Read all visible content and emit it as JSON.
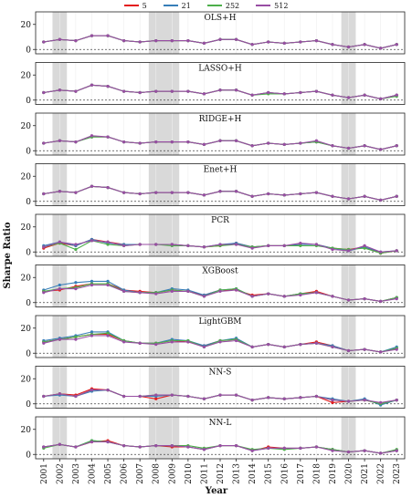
{
  "chart_data": {
    "type": "line",
    "ylabel": "Sharpe Ratio",
    "xlabel": "Year",
    "legend_position": "top-center",
    "shaded_years": [
      "2002",
      "2008-2009",
      "2020"
    ],
    "x": [
      "2001",
      "2002",
      "2003",
      "2004",
      "2005",
      "2006",
      "2007",
      "2008",
      "2009",
      "2010",
      "2011",
      "2012",
      "2013",
      "2014",
      "2015",
      "2016",
      "2017",
      "2018",
      "2019",
      "2020",
      "2021",
      "2022",
      "2023"
    ],
    "series_styles": [
      {
        "name": "5",
        "color": "#e41a1c"
      },
      {
        "name": "21",
        "color": "#377eb8"
      },
      {
        "name": "252",
        "color": "#4daf4a"
      },
      {
        "name": "512",
        "color": "#984ea3"
      }
    ],
    "panels": [
      {
        "title": "OLS+H",
        "ylim": [
          -2,
          22
        ],
        "yticks": [
          0,
          20
        ],
        "series": [
          {
            "name": "5",
            "values": [
              6,
              8,
              7,
              11,
              11,
              7,
              6,
              7,
              7,
              7,
              5,
              8,
              8,
              4,
              6,
              5,
              6,
              7,
              4,
              2,
              4,
              1,
              4
            ]
          },
          {
            "name": "21",
            "values": [
              6,
              8,
              7,
              11,
              11,
              7,
              6,
              7,
              7,
              7,
              5,
              8,
              8,
              4,
              6,
              5,
              6,
              7,
              4,
              2,
              4,
              1,
              4
            ]
          },
          {
            "name": "252",
            "values": [
              6,
              8,
              7,
              11,
              11,
              7,
              6,
              7,
              7,
              7,
              5,
              8,
              8,
              4,
              6,
              5,
              6,
              7,
              4,
              2,
              4,
              1,
              4
            ]
          },
          {
            "name": "512",
            "values": [
              6,
              8,
              7,
              11,
              11,
              7,
              6,
              7,
              7,
              7,
              5,
              8,
              8,
              4,
              6,
              5,
              6,
              7,
              4,
              2,
              4,
              1,
              4
            ]
          }
        ]
      },
      {
        "title": "LASSO+H",
        "ylim": [
          -2,
          22
        ],
        "yticks": [
          0,
          20
        ],
        "series": [
          {
            "name": "5",
            "values": [
              6,
              8,
              7,
              12,
              11,
              7,
              6,
              7,
              7,
              7,
              5,
              8,
              8,
              4,
              6,
              5,
              6,
              7,
              4,
              2,
              4,
              1,
              4
            ]
          },
          {
            "name": "21",
            "values": [
              6,
              8,
              7,
              12,
              11,
              7,
              6,
              7,
              7,
              7,
              5,
              8,
              8,
              4,
              6,
              5,
              6,
              7,
              4,
              2,
              4,
              1,
              4
            ]
          },
          {
            "name": "252",
            "values": [
              6,
              8,
              7,
              12,
              11,
              7,
              6,
              7,
              7,
              7,
              5,
              8,
              8,
              4,
              5,
              5,
              6,
              7,
              4,
              2,
              4,
              1,
              3
            ]
          },
          {
            "name": "512",
            "values": [
              6,
              8,
              7,
              12,
              11,
              7,
              6,
              7,
              7,
              7,
              5,
              8,
              8,
              4,
              6,
              5,
              6,
              7,
              4,
              2,
              4,
              1,
              4
            ]
          }
        ]
      },
      {
        "title": "RIDGE+H",
        "ylim": [
          -2,
          22
        ],
        "yticks": [
          0,
          20
        ],
        "series": [
          {
            "name": "5",
            "values": [
              6,
              8,
              7,
              11,
              11,
              7,
              6,
              7,
              7,
              7,
              5,
              8,
              8,
              4,
              6,
              5,
              6,
              7,
              4,
              2,
              4,
              1,
              4
            ]
          },
          {
            "name": "21",
            "values": [
              6,
              8,
              7,
              11,
              11,
              7,
              6,
              7,
              7,
              7,
              5,
              8,
              8,
              4,
              6,
              5,
              6,
              7,
              4,
              2,
              4,
              1,
              4
            ]
          },
          {
            "name": "252",
            "values": [
              6,
              8,
              7,
              11,
              11,
              7,
              6,
              7,
              7,
              7,
              5,
              8,
              8,
              4,
              6,
              5,
              6,
              7,
              4,
              2,
              4,
              1,
              4
            ]
          },
          {
            "name": "512",
            "values": [
              6,
              8,
              7,
              12,
              11,
              7,
              6,
              7,
              7,
              7,
              5,
              8,
              8,
              4,
              6,
              5,
              6,
              8,
              4,
              2,
              4,
              1,
              4
            ]
          }
        ]
      },
      {
        "title": "Enet+H",
        "ylim": [
          -2,
          22
        ],
        "yticks": [
          0,
          20
        ],
        "series": [
          {
            "name": "5",
            "values": [
              6,
              8,
              7,
              12,
              11,
              7,
              6,
              7,
              7,
              7,
              5,
              8,
              8,
              4,
              6,
              5,
              6,
              7,
              4,
              2,
              4,
              1,
              4
            ]
          },
          {
            "name": "21",
            "values": [
              6,
              8,
              7,
              12,
              11,
              7,
              6,
              7,
              7,
              7,
              5,
              8,
              8,
              4,
              6,
              5,
              6,
              7,
              4,
              2,
              4,
              1,
              4
            ]
          },
          {
            "name": "252",
            "values": [
              6,
              8,
              7,
              12,
              11,
              7,
              6,
              7,
              7,
              7,
              5,
              8,
              8,
              4,
              6,
              5,
              6,
              7,
              4,
              2,
              4,
              1,
              4
            ]
          },
          {
            "name": "512",
            "values": [
              6,
              8,
              7,
              12,
              11,
              7,
              6,
              7,
              7,
              7,
              5,
              8,
              8,
              4,
              6,
              5,
              6,
              7,
              4,
              2,
              4,
              1,
              4
            ]
          }
        ]
      },
      {
        "title": "PCR",
        "ylim": [
          -2,
          22
        ],
        "yticks": [
          0,
          20
        ],
        "series": [
          {
            "name": "5",
            "values": [
              3,
              7,
              5,
              10,
              8,
              6,
              6,
              6,
              6,
              5,
              4,
              5,
              7,
              4,
              5,
              5,
              6,
              6,
              3,
              2,
              4,
              -1,
              1
            ]
          },
          {
            "name": "21",
            "values": [
              5,
              8,
              5,
              10,
              7,
              6,
              6,
              6,
              6,
              5,
              4,
              6,
              7,
              4,
              5,
              5,
              6,
              6,
              3,
              1,
              4,
              0,
              1
            ]
          },
          {
            "name": "252",
            "values": [
              4,
              7,
              2,
              9,
              6,
              5,
              6,
              6,
              5,
              5,
              4,
              5,
              6,
              4,
              5,
              5,
              5,
              5,
              3,
              2,
              3,
              -1,
              1
            ]
          },
          {
            "name": "512",
            "values": [
              4,
              8,
              6,
              9,
              8,
              5,
              6,
              6,
              6,
              5,
              4,
              6,
              6,
              3,
              5,
              5,
              7,
              6,
              2,
              1,
              5,
              0,
              1
            ]
          }
        ]
      },
      {
        "title": "XGBoost",
        "ylim": [
          -2,
          22
        ],
        "yticks": [
          0,
          20
        ],
        "series": [
          {
            "name": "5",
            "values": [
              9,
              10,
              13,
              15,
              15,
              10,
              9,
              8,
              10,
              9,
              6,
              10,
              10,
              6,
              7,
              5,
              7,
              9,
              5,
              2,
              3,
              1,
              4
            ]
          },
          {
            "name": "21",
            "values": [
              10,
              14,
              16,
              17,
              17,
              10,
              8,
              8,
              11,
              10,
              6,
              10,
              11,
              5,
              7,
              5,
              7,
              8,
              5,
              2,
              3,
              1,
              4
            ]
          },
          {
            "name": "252",
            "values": [
              9,
              11,
              12,
              15,
              15,
              9,
              8,
              8,
              10,
              9,
              5,
              10,
              11,
              5,
              7,
              5,
              7,
              8,
              5,
              2,
              3,
              1,
              4
            ]
          },
          {
            "name": "512",
            "values": [
              8,
              11,
              11,
              14,
              14,
              9,
              8,
              7,
              9,
              9,
              5,
              9,
              10,
              5,
              7,
              5,
              6,
              8,
              5,
              2,
              3,
              1,
              3
            ]
          }
        ]
      },
      {
        "title": "LightGBM",
        "ylim": [
          -2,
          22
        ],
        "yticks": [
          0,
          20
        ],
        "series": [
          {
            "name": "5",
            "values": [
              9,
              11,
              13,
              15,
              15,
              10,
              8,
              8,
              10,
              9,
              6,
              10,
              11,
              5,
              7,
              5,
              7,
              9,
              6,
              2,
              3,
              1,
              4
            ]
          },
          {
            "name": "21",
            "values": [
              10,
              12,
              14,
              17,
              17,
              10,
              8,
              8,
              11,
              10,
              6,
              10,
              12,
              5,
              7,
              5,
              7,
              8,
              6,
              2,
              3,
              1,
              5
            ]
          },
          {
            "name": "252",
            "values": [
              9,
              11,
              13,
              15,
              16,
              10,
              8,
              8,
              10,
              10,
              5,
              10,
              11,
              5,
              7,
              5,
              7,
              8,
              5,
              2,
              3,
              1,
              4
            ]
          },
          {
            "name": "512",
            "values": [
              8,
              11,
              11,
              14,
              14,
              9,
              8,
              7,
              9,
              9,
              5,
              9,
              10,
              5,
              7,
              5,
              7,
              8,
              5,
              2,
              3,
              1,
              3
            ]
          }
        ]
      },
      {
        "title": "NN-S",
        "ylim": [
          -2,
          22
        ],
        "yticks": [
          0,
          20
        ],
        "series": [
          {
            "name": "5",
            "values": [
              6,
              8,
              7,
              12,
              11,
              6,
              6,
              4,
              7,
              6,
              4,
              7,
              7,
              3,
              5,
              4,
              5,
              6,
              1,
              2,
              3,
              0,
              3
            ]
          },
          {
            "name": "21",
            "values": [
              6,
              7,
              6,
              10,
              11,
              6,
              6,
              6,
              7,
              6,
              4,
              7,
              7,
              3,
              5,
              4,
              5,
              6,
              4,
              2,
              4,
              -1,
              3
            ]
          },
          {
            "name": "252",
            "values": [
              6,
              8,
              6,
              11,
              11,
              6,
              6,
              7,
              7,
              6,
              4,
              7,
              7,
              3,
              5,
              4,
              5,
              6,
              3,
              2,
              3,
              0,
              3
            ]
          },
          {
            "name": "512",
            "values": [
              6,
              8,
              6,
              11,
              11,
              6,
              6,
              7,
              7,
              6,
              4,
              7,
              7,
              3,
              5,
              4,
              5,
              6,
              3,
              2,
              3,
              1,
              3
            ]
          }
        ]
      },
      {
        "title": "NN-L",
        "ylim": [
          -2,
          22
        ],
        "yticks": [
          0,
          20
        ],
        "series": [
          {
            "name": "5",
            "values": [
              6,
              8,
              6,
              10,
              11,
              7,
              6,
              7,
              6,
              6,
              4,
              7,
              7,
              3,
              6,
              5,
              5,
              6,
              4,
              2,
              3,
              1,
              3
            ]
          },
          {
            "name": "21",
            "values": [
              6,
              8,
              6,
              11,
              10,
              7,
              6,
              7,
              7,
              6,
              4,
              7,
              7,
              3,
              5,
              5,
              5,
              6,
              4,
              2,
              3,
              1,
              3
            ]
          },
          {
            "name": "252",
            "values": [
              5,
              8,
              6,
              11,
              10,
              7,
              6,
              7,
              7,
              7,
              5,
              7,
              7,
              4,
              5,
              4,
              5,
              6,
              4,
              2,
              3,
              1,
              4
            ]
          },
          {
            "name": "512",
            "values": [
              6,
              8,
              6,
              10,
              10,
              7,
              6,
              7,
              7,
              6,
              4,
              7,
              7,
              3,
              5,
              5,
              5,
              6,
              3,
              2,
              3,
              1,
              3
            ]
          }
        ]
      }
    ]
  }
}
